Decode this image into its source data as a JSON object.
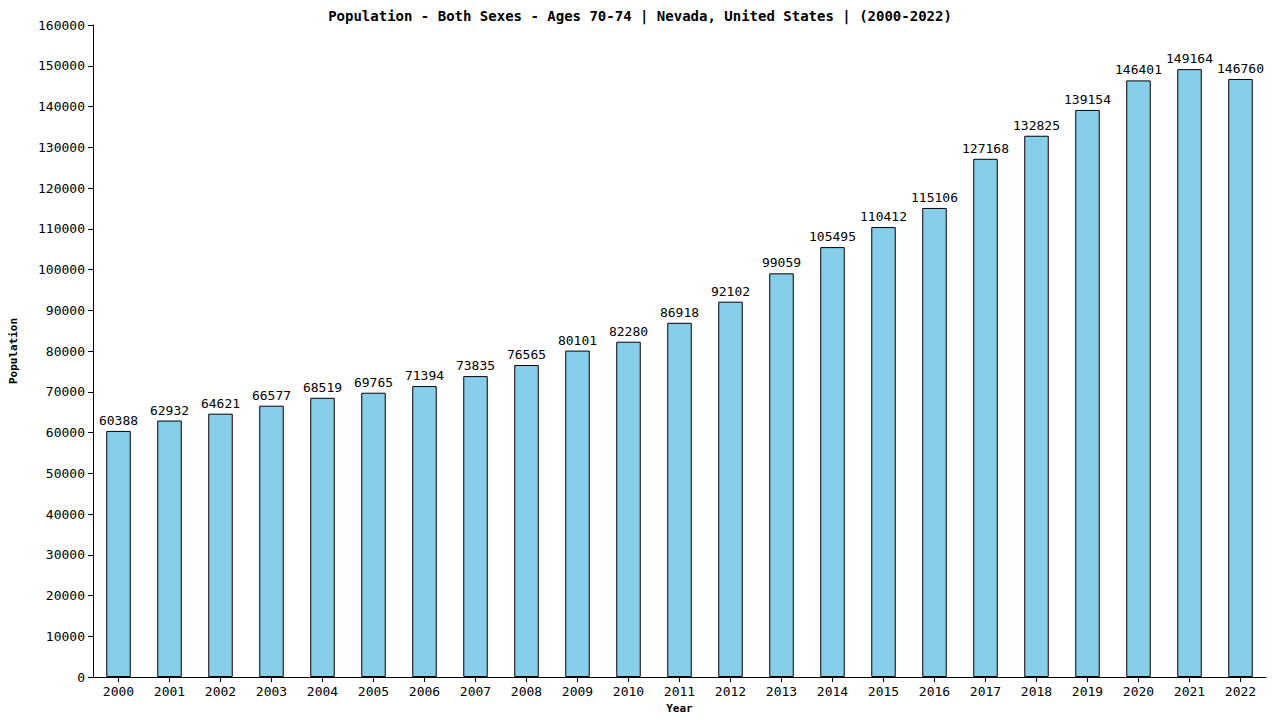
{
  "chart_data": {
    "type": "bar",
    "title": "Population - Both Sexes - Ages 70-74 | Nevada, United States | (2000-2022)",
    "x_label": "Year",
    "y_label": "Population",
    "categories": [
      "2000",
      "2001",
      "2002",
      "2003",
      "2004",
      "2005",
      "2006",
      "2007",
      "2008",
      "2009",
      "2010",
      "2011",
      "2012",
      "2013",
      "2014",
      "2015",
      "2016",
      "2017",
      "2018",
      "2019",
      "2020",
      "2021",
      "2022"
    ],
    "values": [
      60388,
      62932,
      64621,
      66577,
      68519,
      69765,
      71394,
      73835,
      76565,
      80101,
      82280,
      86918,
      92102,
      99059,
      105495,
      110412,
      115106,
      127168,
      132825,
      139154,
      146401,
      149164,
      146760
    ],
    "color": "#87ceeb",
    "ylim": [
      0,
      160000
    ],
    "yticks": [
      0,
      10000,
      20000,
      30000,
      40000,
      50000,
      60000,
      70000,
      80000,
      90000,
      100000,
      110000,
      120000,
      130000,
      140000,
      150000,
      160000
    ],
    "grid": false,
    "data_labels": true
  }
}
